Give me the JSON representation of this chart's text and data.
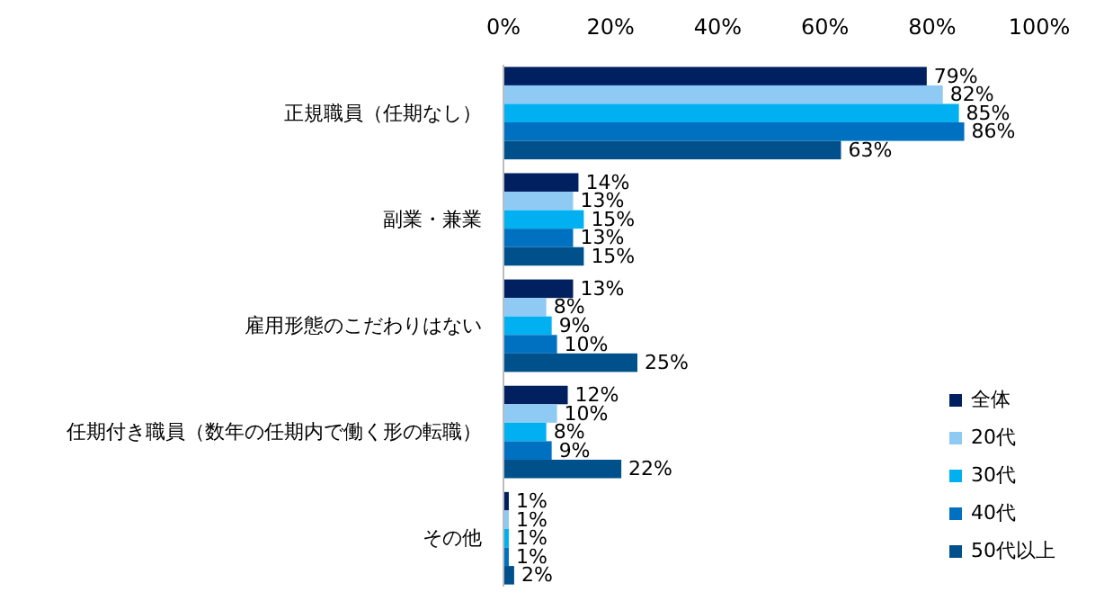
{
  "chart_data": {
    "type": "bar",
    "orientation": "horizontal",
    "categories": [
      "正規職員（任期なし）",
      "副業・兼業",
      "雇用形態のこだわりはない",
      "任期付き職員（数年の任期内で働く形の転職）",
      "その他"
    ],
    "series": [
      {
        "name": "全体",
        "color": "#002060",
        "values": [
          79,
          14,
          13,
          12,
          1
        ],
        "value_labels": [
          "79%",
          "14%",
          "13%",
          "12%",
          "1%"
        ]
      },
      {
        "name": "20代",
        "color": "#8fcaf5",
        "values": [
          82,
          13,
          8,
          10,
          1
        ],
        "value_labels": [
          "82%",
          "13%",
          "8%",
          "10%",
          "1%"
        ]
      },
      {
        "name": "30代",
        "color": "#00b0f0",
        "values": [
          85,
          15,
          9,
          8,
          1
        ],
        "value_labels": [
          "85%",
          "15%",
          "9%",
          "8%",
          "1%"
        ]
      },
      {
        "name": "40代",
        "color": "#0070c0",
        "values": [
          86,
          13,
          10,
          9,
          1
        ],
        "value_labels": [
          "86%",
          "13%",
          "10%",
          "9%",
          "1%"
        ]
      },
      {
        "name": "50代以上",
        "color": "#00508c",
        "values": [
          63,
          15,
          25,
          22,
          2
        ],
        "value_labels": [
          "63%",
          "15%",
          "25%",
          "22%",
          "2%"
        ]
      }
    ],
    "xlim": [
      0,
      100
    ],
    "xticks": [
      {
        "value": 0,
        "label": "0%"
      },
      {
        "value": 20,
        "label": "20%"
      },
      {
        "value": 40,
        "label": "40%"
      },
      {
        "value": 60,
        "label": "60%"
      },
      {
        "value": 80,
        "label": "80%"
      },
      {
        "value": 100,
        "label": "100%"
      }
    ],
    "legend": "bottom right",
    "grid": false
  }
}
